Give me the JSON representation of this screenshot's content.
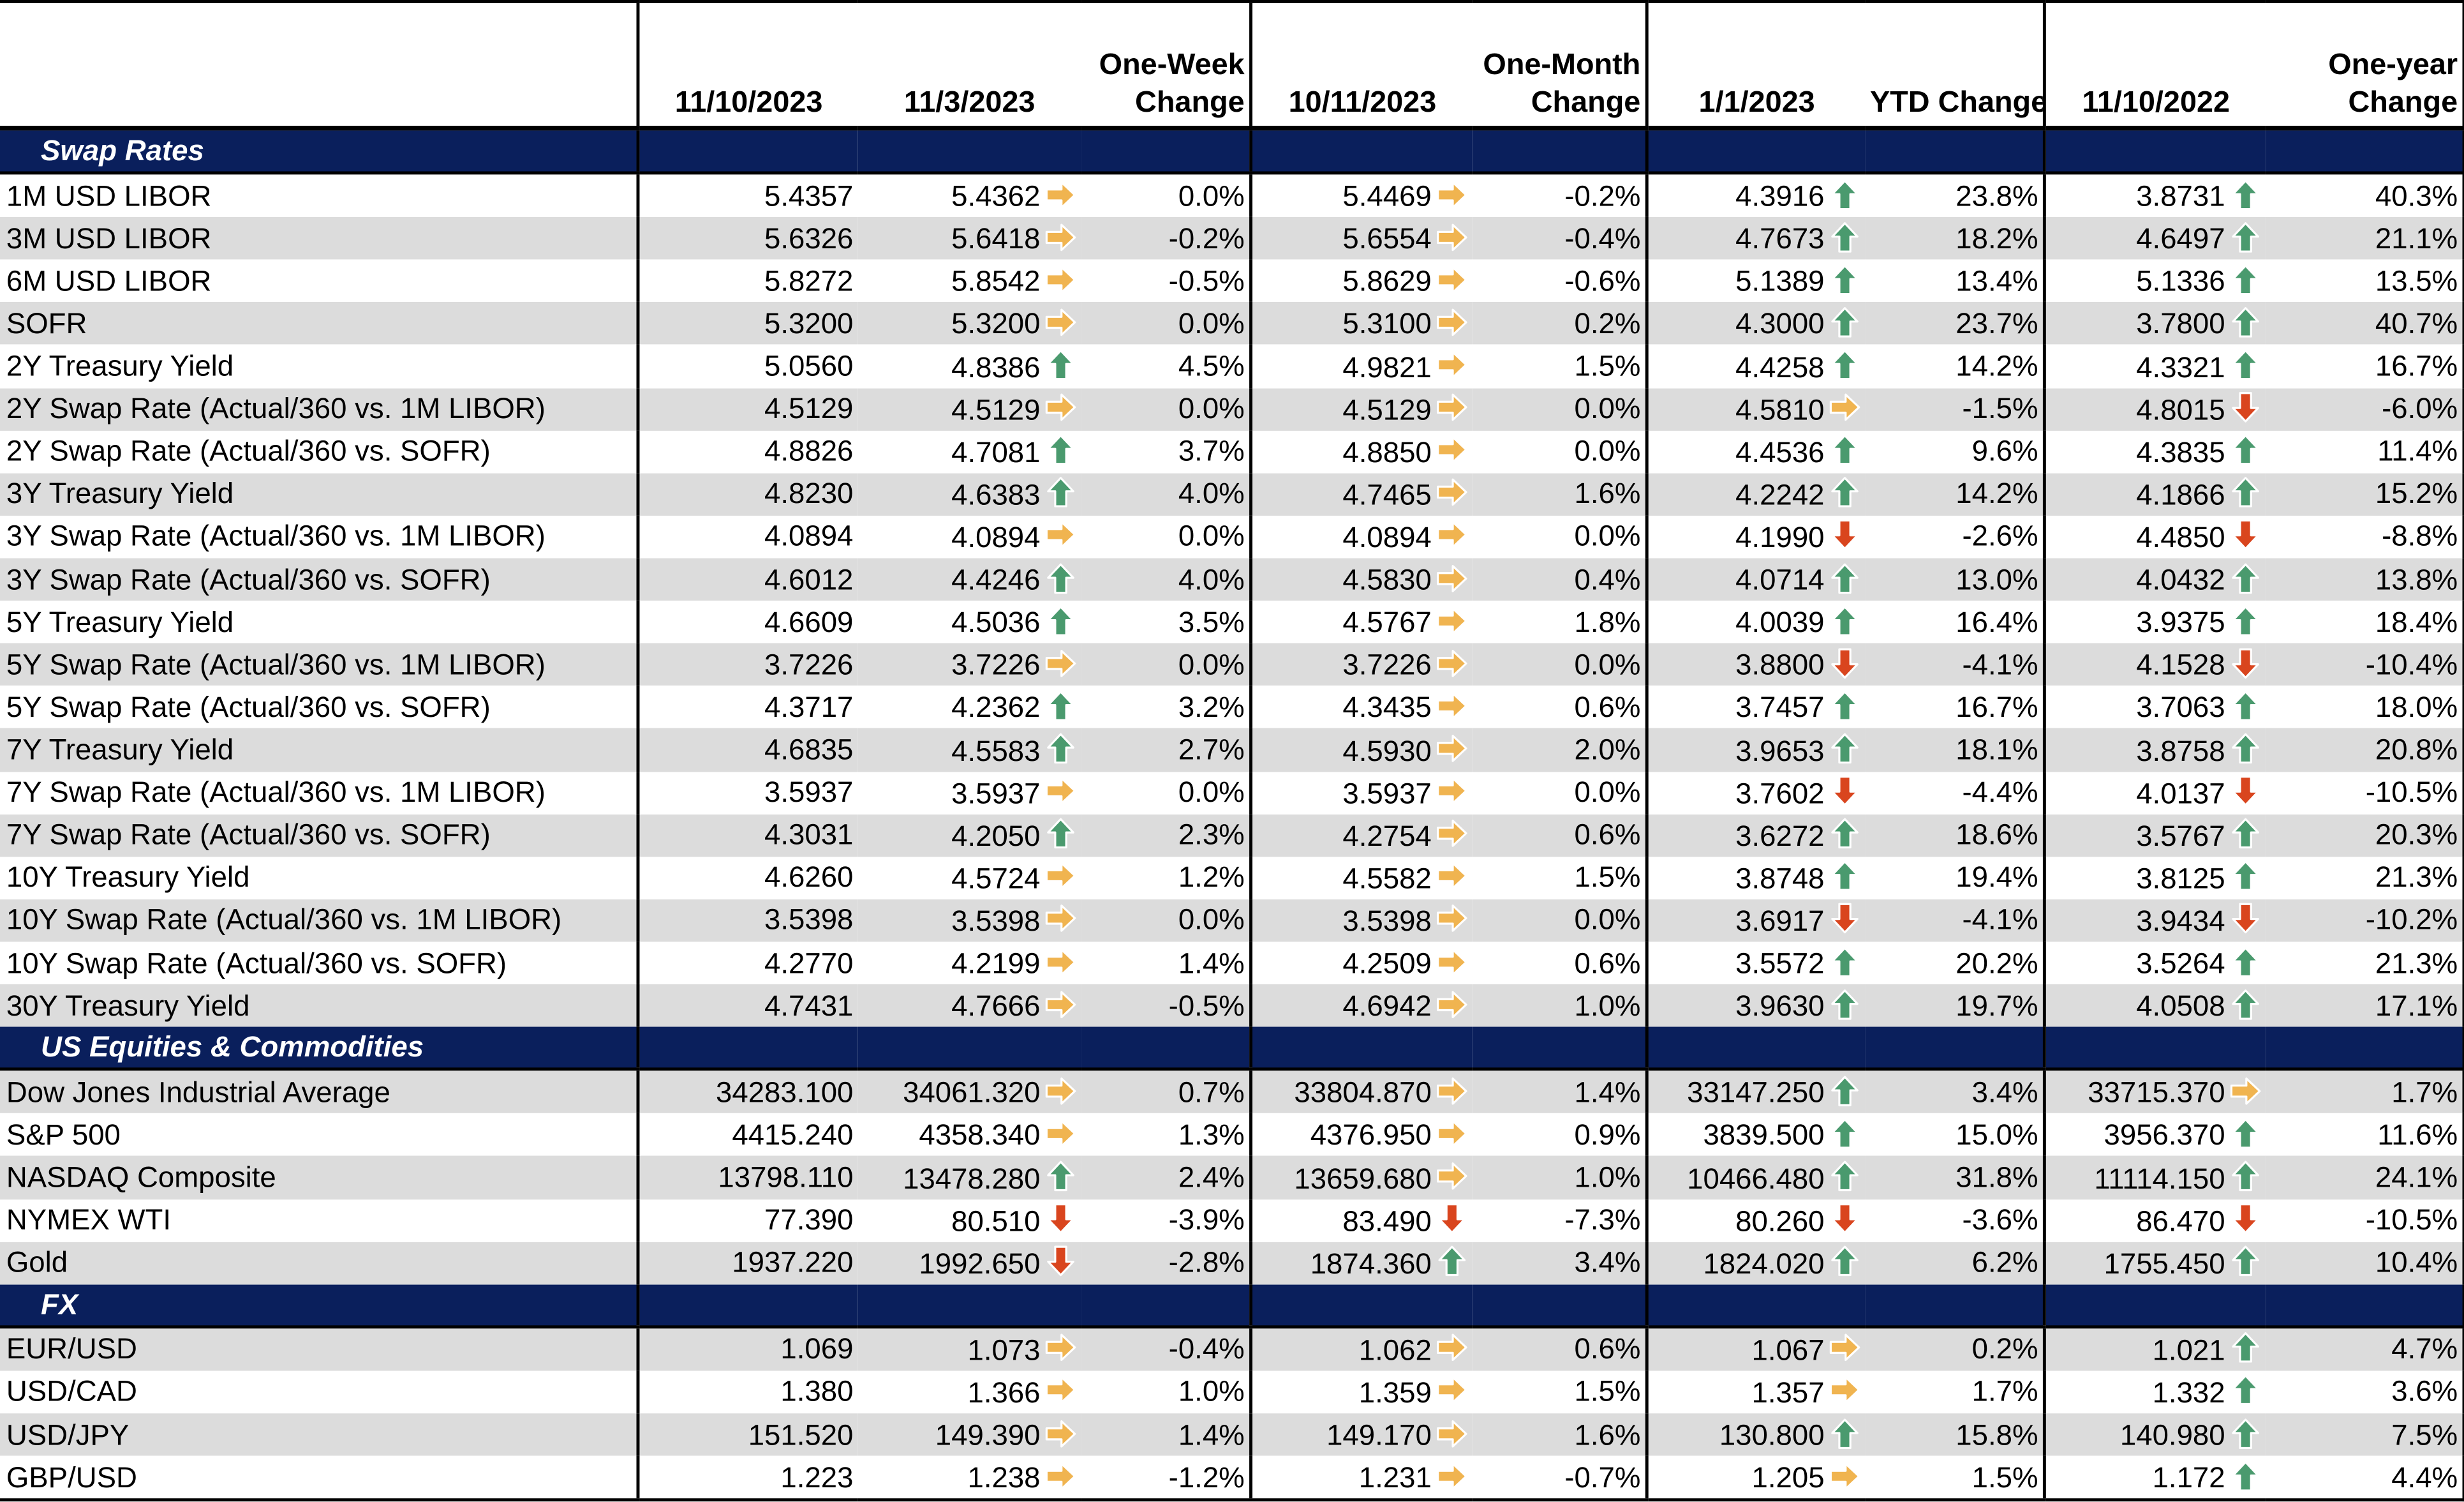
{
  "headers": {
    "label": "",
    "d_current": "11/10/2023",
    "d_week": "11/3/2023",
    "chg_week": "One-Week Change",
    "d_month": "10/11/2023",
    "chg_month": "One-Month Change",
    "d_ytd": "1/1/2023",
    "chg_ytd": "YTD Change",
    "d_year": "11/10/2022",
    "chg_year": "One-year Change"
  },
  "sections": [
    {
      "title": "Swap Rates",
      "rows": [
        {
          "label": "1M USD LIBOR",
          "cur": "5.4357",
          "wk": "5.4362",
          "wk_dir": "flat",
          "wk_chg": "0.0%",
          "mo": "5.4469",
          "mo_dir": "flat",
          "mo_chg": "-0.2%",
          "ytd": "4.3916",
          "ytd_dir": "up",
          "ytd_chg": "23.8%",
          "yr": "3.8731",
          "yr_dir": "up",
          "yr_chg": "40.3%"
        },
        {
          "label": "3M USD LIBOR",
          "cur": "5.6326",
          "wk": "5.6418",
          "wk_dir": "flat",
          "wk_chg": "-0.2%",
          "mo": "5.6554",
          "mo_dir": "flat",
          "mo_chg": "-0.4%",
          "ytd": "4.7673",
          "ytd_dir": "up",
          "ytd_chg": "18.2%",
          "yr": "4.6497",
          "yr_dir": "up",
          "yr_chg": "21.1%"
        },
        {
          "label": "6M USD LIBOR",
          "cur": "5.8272",
          "wk": "5.8542",
          "wk_dir": "flat",
          "wk_chg": "-0.5%",
          "mo": "5.8629",
          "mo_dir": "flat",
          "mo_chg": "-0.6%",
          "ytd": "5.1389",
          "ytd_dir": "up",
          "ytd_chg": "13.4%",
          "yr": "5.1336",
          "yr_dir": "up",
          "yr_chg": "13.5%"
        },
        {
          "label": "SOFR",
          "cur": "5.3200",
          "wk": "5.3200",
          "wk_dir": "flat",
          "wk_chg": "0.0%",
          "mo": "5.3100",
          "mo_dir": "flat",
          "mo_chg": "0.2%",
          "ytd": "4.3000",
          "ytd_dir": "up",
          "ytd_chg": "23.7%",
          "yr": "3.7800",
          "yr_dir": "up",
          "yr_chg": "40.7%"
        },
        {
          "label": "2Y Treasury Yield",
          "cur": "5.0560",
          "wk": "4.8386",
          "wk_dir": "up",
          "wk_chg": "4.5%",
          "mo": "4.9821",
          "mo_dir": "flat",
          "mo_chg": "1.5%",
          "ytd": "4.4258",
          "ytd_dir": "up",
          "ytd_chg": "14.2%",
          "yr": "4.3321",
          "yr_dir": "up",
          "yr_chg": "16.7%"
        },
        {
          "label": "2Y Swap Rate (Actual/360 vs. 1M LIBOR)",
          "cur": "4.5129",
          "wk": "4.5129",
          "wk_dir": "flat",
          "wk_chg": "0.0%",
          "mo": "4.5129",
          "mo_dir": "flat",
          "mo_chg": "0.0%",
          "ytd": "4.5810",
          "ytd_dir": "flat",
          "ytd_chg": "-1.5%",
          "yr": "4.8015",
          "yr_dir": "down",
          "yr_chg": "-6.0%"
        },
        {
          "label": "2Y Swap Rate (Actual/360 vs. SOFR)",
          "cur": "4.8826",
          "wk": "4.7081",
          "wk_dir": "up",
          "wk_chg": "3.7%",
          "mo": "4.8850",
          "mo_dir": "flat",
          "mo_chg": "0.0%",
          "ytd": "4.4536",
          "ytd_dir": "up",
          "ytd_chg": "9.6%",
          "yr": "4.3835",
          "yr_dir": "up",
          "yr_chg": "11.4%"
        },
        {
          "label": "3Y Treasury Yield",
          "cur": "4.8230",
          "wk": "4.6383",
          "wk_dir": "up",
          "wk_chg": "4.0%",
          "mo": "4.7465",
          "mo_dir": "flat",
          "mo_chg": "1.6%",
          "ytd": "4.2242",
          "ytd_dir": "up",
          "ytd_chg": "14.2%",
          "yr": "4.1866",
          "yr_dir": "up",
          "yr_chg": "15.2%"
        },
        {
          "label": "3Y Swap Rate (Actual/360 vs. 1M LIBOR)",
          "cur": "4.0894",
          "wk": "4.0894",
          "wk_dir": "flat",
          "wk_chg": "0.0%",
          "mo": "4.0894",
          "mo_dir": "flat",
          "mo_chg": "0.0%",
          "ytd": "4.1990",
          "ytd_dir": "down",
          "ytd_chg": "-2.6%",
          "yr": "4.4850",
          "yr_dir": "down",
          "yr_chg": "-8.8%"
        },
        {
          "label": "3Y Swap Rate (Actual/360 vs. SOFR)",
          "cur": "4.6012",
          "wk": "4.4246",
          "wk_dir": "up",
          "wk_chg": "4.0%",
          "mo": "4.5830",
          "mo_dir": "flat",
          "mo_chg": "0.4%",
          "ytd": "4.0714",
          "ytd_dir": "up",
          "ytd_chg": "13.0%",
          "yr": "4.0432",
          "yr_dir": "up",
          "yr_chg": "13.8%"
        },
        {
          "label": "5Y Treasury Yield",
          "cur": "4.6609",
          "wk": "4.5036",
          "wk_dir": "up",
          "wk_chg": "3.5%",
          "mo": "4.5767",
          "mo_dir": "flat",
          "mo_chg": "1.8%",
          "ytd": "4.0039",
          "ytd_dir": "up",
          "ytd_chg": "16.4%",
          "yr": "3.9375",
          "yr_dir": "up",
          "yr_chg": "18.4%"
        },
        {
          "label": "5Y Swap Rate (Actual/360 vs. 1M LIBOR)",
          "cur": "3.7226",
          "wk": "3.7226",
          "wk_dir": "flat",
          "wk_chg": "0.0%",
          "mo": "3.7226",
          "mo_dir": "flat",
          "mo_chg": "0.0%",
          "ytd": "3.8800",
          "ytd_dir": "down",
          "ytd_chg": "-4.1%",
          "yr": "4.1528",
          "yr_dir": "down",
          "yr_chg": "-10.4%"
        },
        {
          "label": "5Y Swap Rate (Actual/360 vs. SOFR)",
          "cur": "4.3717",
          "wk": "4.2362",
          "wk_dir": "up",
          "wk_chg": "3.2%",
          "mo": "4.3435",
          "mo_dir": "flat",
          "mo_chg": "0.6%",
          "ytd": "3.7457",
          "ytd_dir": "up",
          "ytd_chg": "16.7%",
          "yr": "3.7063",
          "yr_dir": "up",
          "yr_chg": "18.0%"
        },
        {
          "label": "7Y Treasury Yield",
          "cur": "4.6835",
          "wk": "4.5583",
          "wk_dir": "up",
          "wk_chg": "2.7%",
          "mo": "4.5930",
          "mo_dir": "flat",
          "mo_chg": "2.0%",
          "ytd": "3.9653",
          "ytd_dir": "up",
          "ytd_chg": "18.1%",
          "yr": "3.8758",
          "yr_dir": "up",
          "yr_chg": "20.8%"
        },
        {
          "label": "7Y Swap Rate (Actual/360 vs. 1M LIBOR)",
          "cur": "3.5937",
          "wk": "3.5937",
          "wk_dir": "flat",
          "wk_chg": "0.0%",
          "mo": "3.5937",
          "mo_dir": "flat",
          "mo_chg": "0.0%",
          "ytd": "3.7602",
          "ytd_dir": "down",
          "ytd_chg": "-4.4%",
          "yr": "4.0137",
          "yr_dir": "down",
          "yr_chg": "-10.5%"
        },
        {
          "label": "7Y Swap Rate (Actual/360 vs. SOFR)",
          "cur": "4.3031",
          "wk": "4.2050",
          "wk_dir": "up",
          "wk_chg": "2.3%",
          "mo": "4.2754",
          "mo_dir": "flat",
          "mo_chg": "0.6%",
          "ytd": "3.6272",
          "ytd_dir": "up",
          "ytd_chg": "18.6%",
          "yr": "3.5767",
          "yr_dir": "up",
          "yr_chg": "20.3%"
        },
        {
          "label": "10Y Treasury Yield",
          "cur": "4.6260",
          "wk": "4.5724",
          "wk_dir": "flat",
          "wk_chg": "1.2%",
          "mo": "4.5582",
          "mo_dir": "flat",
          "mo_chg": "1.5%",
          "ytd": "3.8748",
          "ytd_dir": "up",
          "ytd_chg": "19.4%",
          "yr": "3.8125",
          "yr_dir": "up",
          "yr_chg": "21.3%"
        },
        {
          "label": "10Y Swap Rate (Actual/360 vs. 1M LIBOR)",
          "cur": "3.5398",
          "wk": "3.5398",
          "wk_dir": "flat",
          "wk_chg": "0.0%",
          "mo": "3.5398",
          "mo_dir": "flat",
          "mo_chg": "0.0%",
          "ytd": "3.6917",
          "ytd_dir": "down",
          "ytd_chg": "-4.1%",
          "yr": "3.9434",
          "yr_dir": "down",
          "yr_chg": "-10.2%"
        },
        {
          "label": "10Y Swap Rate (Actual/360 vs. SOFR)",
          "cur": "4.2770",
          "wk": "4.2199",
          "wk_dir": "flat",
          "wk_chg": "1.4%",
          "mo": "4.2509",
          "mo_dir": "flat",
          "mo_chg": "0.6%",
          "ytd": "3.5572",
          "ytd_dir": "up",
          "ytd_chg": "20.2%",
          "yr": "3.5264",
          "yr_dir": "up",
          "yr_chg": "21.3%"
        },
        {
          "label": "30Y Treasury Yield",
          "cur": "4.7431",
          "wk": "4.7666",
          "wk_dir": "flat",
          "wk_chg": "-0.5%",
          "mo": "4.6942",
          "mo_dir": "flat",
          "mo_chg": "1.0%",
          "ytd": "3.9630",
          "ytd_dir": "up",
          "ytd_chg": "19.7%",
          "yr": "4.0508",
          "yr_dir": "up",
          "yr_chg": "17.1%"
        }
      ]
    },
    {
      "title": "US Equities & Commodities",
      "rows": [
        {
          "label": "Dow Jones Industrial Average",
          "cur": "34283.100",
          "wk": "34061.320",
          "wk_dir": "flat",
          "wk_chg": "0.7%",
          "mo": "33804.870",
          "mo_dir": "flat",
          "mo_chg": "1.4%",
          "ytd": "33147.250",
          "ytd_dir": "up",
          "ytd_chg": "3.4%",
          "yr": "33715.370",
          "yr_dir": "flat",
          "yr_chg": "1.7%"
        },
        {
          "label": "S&P 500",
          "cur": "4415.240",
          "wk": "4358.340",
          "wk_dir": "flat",
          "wk_chg": "1.3%",
          "mo": "4376.950",
          "mo_dir": "flat",
          "mo_chg": "0.9%",
          "ytd": "3839.500",
          "ytd_dir": "up",
          "ytd_chg": "15.0%",
          "yr": "3956.370",
          "yr_dir": "up",
          "yr_chg": "11.6%"
        },
        {
          "label": "NASDAQ Composite",
          "cur": "13798.110",
          "wk": "13478.280",
          "wk_dir": "up",
          "wk_chg": "2.4%",
          "mo": "13659.680",
          "mo_dir": "flat",
          "mo_chg": "1.0%",
          "ytd": "10466.480",
          "ytd_dir": "up",
          "ytd_chg": "31.8%",
          "yr": "11114.150",
          "yr_dir": "up",
          "yr_chg": "24.1%"
        },
        {
          "label": "NYMEX WTI",
          "cur": "77.390",
          "wk": "80.510",
          "wk_dir": "down",
          "wk_chg": "-3.9%",
          "mo": "83.490",
          "mo_dir": "down",
          "mo_chg": "-7.3%",
          "ytd": "80.260",
          "ytd_dir": "down",
          "ytd_chg": "-3.6%",
          "yr": "86.470",
          "yr_dir": "down",
          "yr_chg": "-10.5%"
        },
        {
          "label": "Gold",
          "cur": "1937.220",
          "wk": "1992.650",
          "wk_dir": "down",
          "wk_chg": "-2.8%",
          "mo": "1874.360",
          "mo_dir": "up",
          "mo_chg": "3.4%",
          "ytd": "1824.020",
          "ytd_dir": "up",
          "ytd_chg": "6.2%",
          "yr": "1755.450",
          "yr_dir": "up",
          "yr_chg": "10.4%"
        }
      ]
    },
    {
      "title": "FX",
      "rows": [
        {
          "label": "EUR/USD",
          "cur": "1.069",
          "wk": "1.073",
          "wk_dir": "flat",
          "wk_chg": "-0.4%",
          "mo": "1.062",
          "mo_dir": "flat",
          "mo_chg": "0.6%",
          "ytd": "1.067",
          "ytd_dir": "flat",
          "ytd_chg": "0.2%",
          "yr": "1.021",
          "yr_dir": "up",
          "yr_chg": "4.7%"
        },
        {
          "label": "USD/CAD",
          "cur": "1.380",
          "wk": "1.366",
          "wk_dir": "flat",
          "wk_chg": "1.0%",
          "mo": "1.359",
          "mo_dir": "flat",
          "mo_chg": "1.5%",
          "ytd": "1.357",
          "ytd_dir": "flat",
          "ytd_chg": "1.7%",
          "yr": "1.332",
          "yr_dir": "up",
          "yr_chg": "3.6%"
        },
        {
          "label": "USD/JPY",
          "cur": "151.520",
          "wk": "149.390",
          "wk_dir": "flat",
          "wk_chg": "1.4%",
          "mo": "149.170",
          "mo_dir": "flat",
          "mo_chg": "1.6%",
          "ytd": "130.800",
          "ytd_dir": "up",
          "ytd_chg": "15.8%",
          "yr": "140.980",
          "yr_dir": "up",
          "yr_chg": "7.5%"
        },
        {
          "label": "GBP/USD",
          "cur": "1.223",
          "wk": "1.238",
          "wk_dir": "flat",
          "wk_chg": "-1.2%",
          "mo": "1.231",
          "mo_dir": "flat",
          "mo_chg": "-0.7%",
          "ytd": "1.205",
          "ytd_dir": "flat",
          "ytd_chg": "1.5%",
          "yr": "1.172",
          "yr_dir": "up",
          "yr_chg": "4.4%"
        }
      ]
    }
  ],
  "icons": {
    "up": {
      "name": "green-up-arrow-icon",
      "color": "#4a9a6e"
    },
    "down": {
      "name": "red-down-arrow-icon",
      "color": "#d9451e"
    },
    "flat": {
      "name": "yellow-right-arrow-icon",
      "color": "#f0b450"
    }
  },
  "colors": {
    "section_bg": "#0a1f5c",
    "shade": "#dcdcdc"
  }
}
